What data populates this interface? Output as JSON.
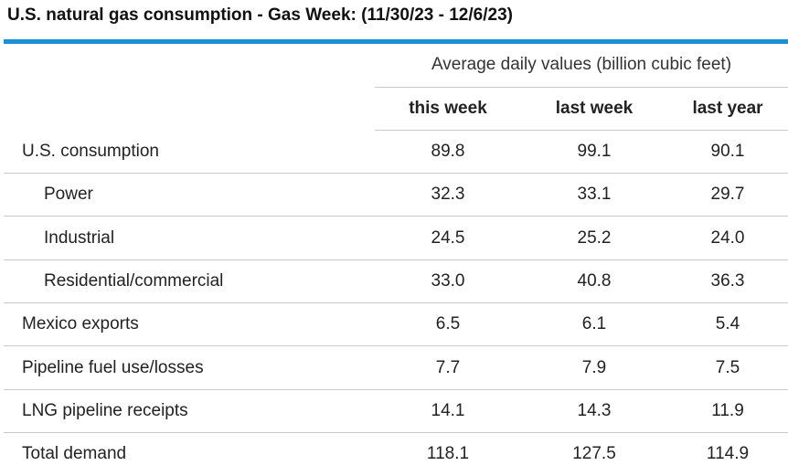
{
  "title": "U.S. natural gas consumption - Gas Week: (11/30/23 - 12/6/23)",
  "chart_data": {
    "type": "table",
    "units_header": "Average daily values (billion cubic feet)",
    "columns": [
      "this week",
      "last week",
      "last year"
    ],
    "rows": [
      {
        "label": "U.S. consumption",
        "indent": false,
        "values": [
          "89.8",
          "99.1",
          "90.1"
        ]
      },
      {
        "label": "Power",
        "indent": true,
        "values": [
          "32.3",
          "33.1",
          "29.7"
        ]
      },
      {
        "label": "Industrial",
        "indent": true,
        "values": [
          "24.5",
          "25.2",
          "24.0"
        ]
      },
      {
        "label": "Residential/commercial",
        "indent": true,
        "values": [
          "33.0",
          "40.8",
          "36.3"
        ]
      },
      {
        "label": "Mexico exports",
        "indent": false,
        "values": [
          "6.5",
          "6.1",
          "5.4"
        ]
      },
      {
        "label": "Pipeline fuel use/losses",
        "indent": false,
        "values": [
          "7.7",
          "7.9",
          "7.5"
        ]
      },
      {
        "label": "LNG pipeline receipts",
        "indent": false,
        "values": [
          "14.1",
          "14.3",
          "11.9"
        ]
      },
      {
        "label": "Total demand",
        "indent": false,
        "values": [
          "118.1",
          "127.5",
          "114.9"
        ]
      }
    ]
  },
  "colors": {
    "accent": "#1a8fd6",
    "rule": "#c8c8c8"
  }
}
